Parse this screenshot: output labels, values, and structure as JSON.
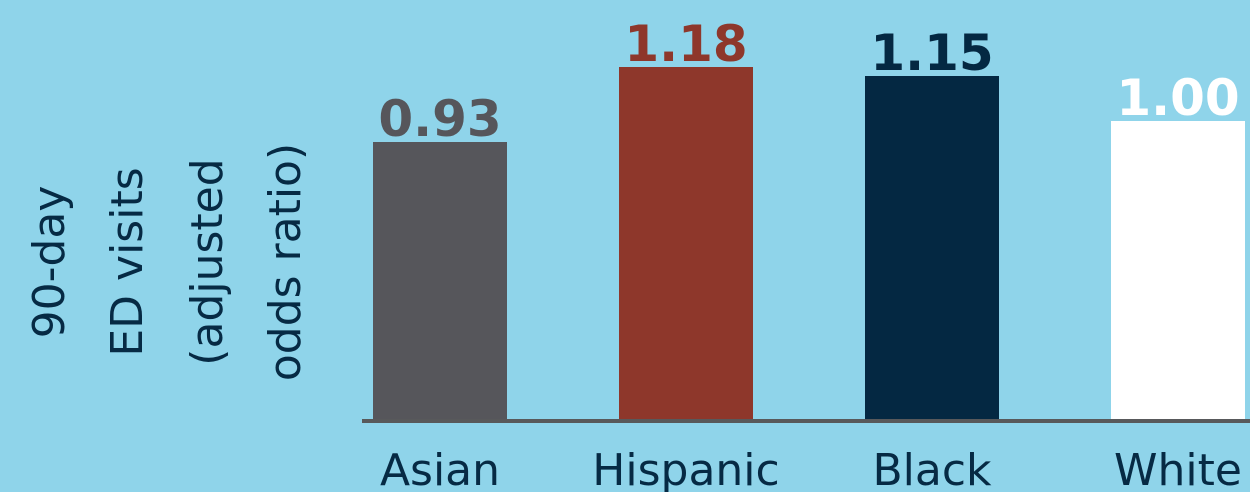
{
  "chart_data": {
    "type": "bar",
    "y_label": [
      "90-day",
      "ED visits",
      "(adjusted",
      "odds ratio)"
    ],
    "categories": [
      "Asian",
      "Hispanic",
      "Black",
      "White"
    ],
    "values": [
      0.93,
      1.18,
      1.15,
      1.0
    ],
    "value_labels": [
      "0.93",
      "1.18",
      "1.15",
      "1.00"
    ],
    "colors": [
      "#56565b",
      "#8e372b",
      "#042842",
      "#ffffff"
    ],
    "ylim": [
      0,
      1.4
    ]
  }
}
